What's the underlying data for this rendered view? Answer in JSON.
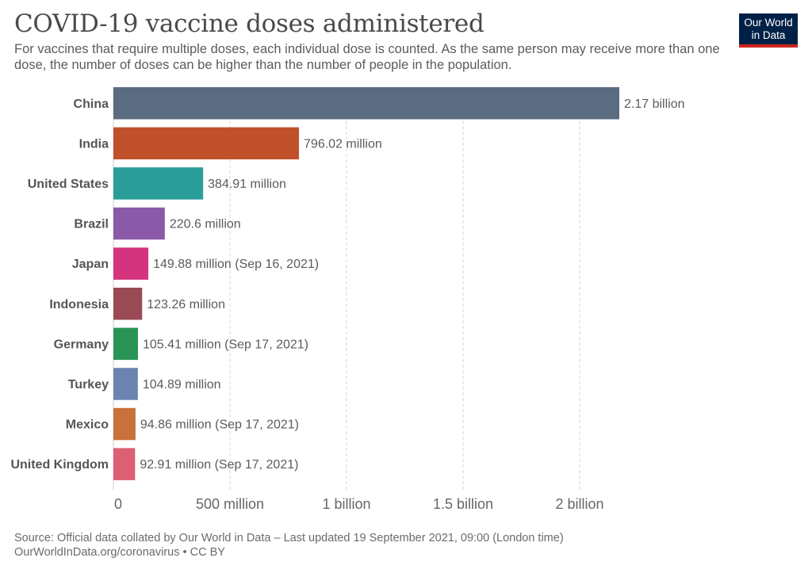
{
  "title": "COVID-19 vaccine doses administered",
  "subtitle": "For vaccines that require multiple doses, each individual dose is counted. As the same person may receive more than one dose, the number of doses can be higher than the number of people in the population.",
  "logo": {
    "line1": "Our World",
    "line2": "in Data",
    "bg_color": "#002147",
    "accent_color": "#ce261e"
  },
  "footer": {
    "source": "Source: Official data collated by Our World in Data – Last updated 19 September 2021, 09:00 (London time)",
    "link": "OurWorldInData.org/coronavirus • CC BY"
  },
  "chart_data": {
    "type": "bar",
    "orientation": "horizontal",
    "title": "COVID-19 vaccine doses administered",
    "xlabel": "",
    "ylabel": "",
    "xlim": [
      0,
      2170000000
    ],
    "ticks": [
      {
        "value": 0,
        "label": "0"
      },
      {
        "value": 500000000,
        "label": "500 million"
      },
      {
        "value": 1000000000,
        "label": "1 billion"
      },
      {
        "value": 1500000000,
        "label": "1.5 billion"
      },
      {
        "value": 2000000000,
        "label": "2 billion"
      }
    ],
    "grid": true,
    "categories": [
      "China",
      "India",
      "United States",
      "Brazil",
      "Japan",
      "Indonesia",
      "Germany",
      "Turkey",
      "Mexico",
      "United Kingdom"
    ],
    "values": [
      2170000000,
      796020000,
      384910000,
      220600000,
      149880000,
      123260000,
      105410000,
      104890000,
      94860000,
      92910000
    ],
    "labels": [
      "2.17 billion",
      "796.02 million",
      "384.91 million",
      "220.6 million",
      "149.88 million (Sep 16, 2021)",
      "123.26 million",
      "105.41 million (Sep 17, 2021)",
      "104.89 million",
      "94.86 million (Sep 17, 2021)",
      "92.91 million (Sep 17, 2021)"
    ],
    "colors": [
      "#5b6b80",
      "#c0502a",
      "#2a9d98",
      "#8a5aa8",
      "#d4347e",
      "#9a4a54",
      "#2a9457",
      "#6a83b0",
      "#c8713a",
      "#dc5f72"
    ]
  }
}
